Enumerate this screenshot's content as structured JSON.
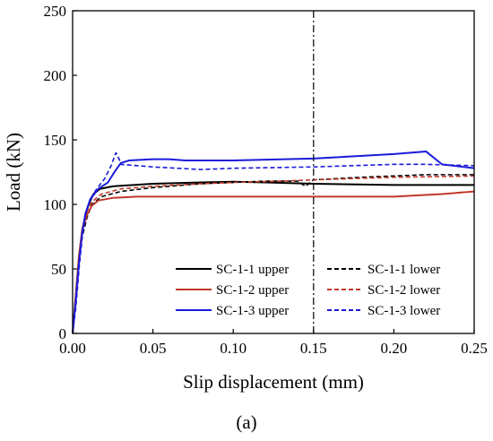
{
  "chart_data": {
    "type": "line",
    "xlabel": "Slip displacement (mm)",
    "ylabel": "Load (kN)",
    "xlim": [
      0,
      0.25
    ],
    "ylim": [
      0,
      250
    ],
    "x_ticks": [
      "0.00",
      "0.05",
      "0.10",
      "0.15",
      "0.20",
      "0.25"
    ],
    "y_ticks": [
      "0",
      "50",
      "100",
      "150",
      "200",
      "250"
    ],
    "reference_line_x": 0.15,
    "grid": false,
    "legend_position": "bottom-right",
    "series": [
      {
        "name": "SC-1-1 upper",
        "color": "#000000",
        "style": "solid",
        "points": [
          [
            0,
            0
          ],
          [
            0.002,
            30
          ],
          [
            0.004,
            60
          ],
          [
            0.006,
            80
          ],
          [
            0.008,
            92
          ],
          [
            0.01,
            100
          ],
          [
            0.013,
            108
          ],
          [
            0.017,
            112
          ],
          [
            0.025,
            114
          ],
          [
            0.05,
            116
          ],
          [
            0.08,
            117
          ],
          [
            0.1,
            117.5
          ],
          [
            0.12,
            117
          ],
          [
            0.15,
            116
          ],
          [
            0.2,
            115
          ],
          [
            0.25,
            115
          ]
        ]
      },
      {
        "name": "SC-1-1 lower",
        "color": "#000000",
        "style": "dashed",
        "points": [
          [
            0,
            0
          ],
          [
            0.002,
            25
          ],
          [
            0.004,
            55
          ],
          [
            0.006,
            75
          ],
          [
            0.009,
            90
          ],
          [
            0.012,
            100
          ],
          [
            0.018,
            106
          ],
          [
            0.03,
            110
          ],
          [
            0.05,
            113
          ],
          [
            0.08,
            116
          ],
          [
            0.1,
            117
          ],
          [
            0.12,
            118
          ],
          [
            0.14,
            118
          ],
          [
            0.145,
            114
          ],
          [
            0.15,
            119
          ],
          [
            0.18,
            121
          ],
          [
            0.22,
            123
          ],
          [
            0.25,
            123
          ]
        ]
      },
      {
        "name": "SC-1-2 upper",
        "color": "#c0392b",
        "style": "solid",
        "points": [
          [
            0,
            0
          ],
          [
            0.002,
            28
          ],
          [
            0.004,
            60
          ],
          [
            0.006,
            80
          ],
          [
            0.009,
            92
          ],
          [
            0.012,
            99
          ],
          [
            0.016,
            103
          ],
          [
            0.025,
            105
          ],
          [
            0.04,
            106
          ],
          [
            0.08,
            106
          ],
          [
            0.12,
            106
          ],
          [
            0.15,
            106
          ],
          [
            0.2,
            106
          ],
          [
            0.23,
            108
          ],
          [
            0.25,
            110
          ]
        ]
      },
      {
        "name": "SC-1-2 lower",
        "color": "#c0392b",
        "style": "dashed",
        "points": [
          [
            0,
            0
          ],
          [
            0.002,
            30
          ],
          [
            0.004,
            60
          ],
          [
            0.006,
            82
          ],
          [
            0.009,
            95
          ],
          [
            0.012,
            102
          ],
          [
            0.018,
            108
          ],
          [
            0.03,
            112
          ],
          [
            0.05,
            114
          ],
          [
            0.08,
            116
          ],
          [
            0.1,
            117
          ],
          [
            0.13,
            118
          ],
          [
            0.15,
            119
          ],
          [
            0.2,
            121
          ],
          [
            0.25,
            122
          ]
        ]
      },
      {
        "name": "SC-1-3 upper",
        "color": "#1a1adb",
        "style": "solid",
        "points": [
          [
            0,
            0
          ],
          [
            0.002,
            25
          ],
          [
            0.004,
            55
          ],
          [
            0.006,
            78
          ],
          [
            0.008,
            93
          ],
          [
            0.011,
            104
          ],
          [
            0.016,
            112
          ],
          [
            0.022,
            117
          ],
          [
            0.026,
            125
          ],
          [
            0.03,
            132
          ],
          [
            0.035,
            134
          ],
          [
            0.05,
            135
          ],
          [
            0.06,
            135
          ],
          [
            0.07,
            134
          ],
          [
            0.1,
            134
          ],
          [
            0.15,
            135.5
          ],
          [
            0.2,
            139
          ],
          [
            0.22,
            141
          ],
          [
            0.23,
            131
          ],
          [
            0.25,
            128
          ]
        ]
      },
      {
        "name": "SC-1-3 lower",
        "color": "#1a1adb",
        "style": "dashed",
        "points": [
          [
            0,
            0
          ],
          [
            0.002,
            20
          ],
          [
            0.004,
            50
          ],
          [
            0.006,
            75
          ],
          [
            0.008,
            92
          ],
          [
            0.011,
            104
          ],
          [
            0.015,
            112
          ],
          [
            0.02,
            120
          ],
          [
            0.024,
            130
          ],
          [
            0.027,
            140
          ],
          [
            0.029,
            135
          ],
          [
            0.03,
            131
          ],
          [
            0.05,
            129
          ],
          [
            0.08,
            127
          ],
          [
            0.1,
            128
          ],
          [
            0.15,
            129
          ],
          [
            0.2,
            131
          ],
          [
            0.22,
            131
          ],
          [
            0.25,
            130
          ]
        ]
      }
    ]
  },
  "caption": "(a)"
}
